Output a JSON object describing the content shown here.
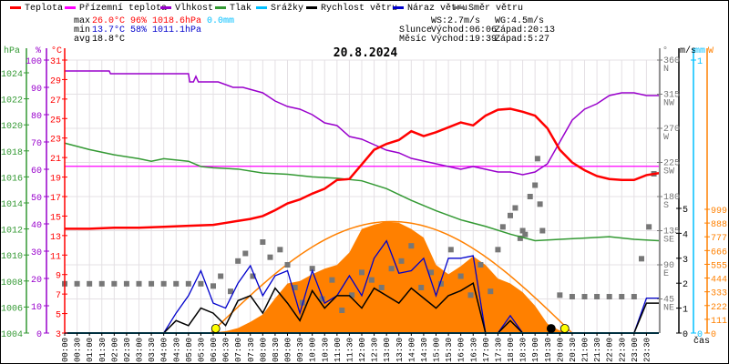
{
  "legend": [
    {
      "label": "Teplota",
      "color": "#ff0000"
    },
    {
      "label": "Přízemní teplota",
      "color": "#ff00ff"
    },
    {
      "label": "Vlhkost",
      "color": "#9900cc"
    },
    {
      "label": "Tlak",
      "color": "#339933"
    },
    {
      "label": "Srážky",
      "color": "#00bfff"
    },
    {
      "label": "Rychlost větru",
      "color": "#000000"
    },
    {
      "label": "Náraz větru",
      "color": "#0000cc"
    },
    {
      "label": "Směr větru",
      "color": "#777777"
    }
  ],
  "stats": {
    "max_label": "max",
    "max_temp": "26.0°C",
    "max_hum": "96%",
    "max_press": "1018.6hPa",
    "rain": "0.0mm",
    "min_label": "min",
    "min_temp": "13.7°C",
    "min_hum": "58%",
    "min_press": "1011.1hPa",
    "avg_label": "avg",
    "avg_temp": "18.8°C",
    "ws": "WS:2.7m/s",
    "wg": "WG:4.5m/s",
    "sun_label": "Slunce",
    "sunrise": "Východ:06:06",
    "sunset": "Západ:20:13",
    "moon_label": "Měsíc",
    "moonrise": "Východ:19:39",
    "moonset": "Západ:5:27"
  },
  "chart_data": {
    "type": "line",
    "title": "20.8.2024",
    "xlabel": "čas",
    "x_ticks": [
      "00:00",
      "00:30",
      "01:00",
      "01:30",
      "02:00",
      "02:30",
      "03:00",
      "03:30",
      "04:00",
      "04:30",
      "05:00",
      "05:30",
      "06:00",
      "06:30",
      "07:00",
      "07:30",
      "08:00",
      "08:30",
      "09:00",
      "09:30",
      "10:00",
      "10:30",
      "11:00",
      "11:30",
      "12:00",
      "12:30",
      "13:00",
      "13:30",
      "14:00",
      "14:30",
      "15:00",
      "15:30",
      "16:00",
      "16:30",
      "17:00",
      "17:30",
      "18:00",
      "18:30",
      "19:00",
      "19:30",
      "20:00",
      "20:30",
      "21:00",
      "21:30",
      "22:00",
      "22:30",
      "23:00",
      "23:30"
    ],
    "axes": {
      "pressure": {
        "unit": "hPa",
        "range": [
          1004,
          1024
        ],
        "ticks": [
          1004,
          1006,
          1008,
          1010,
          1012,
          1014,
          1016,
          1018,
          1020,
          1022,
          1024
        ],
        "color": "#339933"
      },
      "humidity": {
        "unit": "%",
        "range": [
          0,
          100
        ],
        "ticks": [
          0,
          10,
          20,
          30,
          40,
          50,
          60,
          70,
          80,
          90,
          100
        ],
        "color": "#9900cc"
      },
      "temperature": {
        "unit": "°C",
        "range": [
          3,
          31
        ],
        "ticks": [
          3,
          5,
          7,
          9,
          11,
          13,
          15,
          17,
          19,
          21,
          23,
          25,
          27,
          29,
          31
        ],
        "color": "#ff0000"
      },
      "direction": {
        "unit": "°",
        "range": [
          0,
          360
        ],
        "ticks": [
          {
            "v": 45,
            "l": "NE"
          },
          {
            "v": 90,
            "l": "E"
          },
          {
            "v": 135,
            "l": "SE"
          },
          {
            "v": 180,
            "l": "S"
          },
          {
            "v": 225,
            "l": "SW"
          },
          {
            "v": 270,
            "l": "W"
          },
          {
            "v": 315,
            "l": "NW"
          },
          {
            "v": 360,
            "l": "N"
          }
        ],
        "color": "#777777"
      },
      "wind": {
        "unit": "m/s",
        "range": [
          0,
          5
        ],
        "ticks": [
          0,
          1,
          2,
          3,
          4,
          5
        ],
        "color": "#000000"
      },
      "rain": {
        "unit": "mm",
        "range": [
          0,
          1
        ],
        "ticks": [
          0,
          1
        ],
        "color": "#00bfff"
      },
      "radiation": {
        "unit": "W",
        "range": [
          0,
          999
        ],
        "ticks": [
          0,
          111,
          222,
          333,
          444,
          555,
          666,
          777,
          888,
          999
        ],
        "color": "#ff8000"
      }
    },
    "series": {
      "temperature": [
        [
          0,
          13.7
        ],
        [
          1,
          13.7
        ],
        [
          2,
          13.8
        ],
        [
          3,
          13.8
        ],
        [
          4,
          13.9
        ],
        [
          5,
          14.0
        ],
        [
          6,
          14.1
        ],
        [
          6.5,
          14.3
        ],
        [
          7,
          14.5
        ],
        [
          7.5,
          14.7
        ],
        [
          8,
          15.0
        ],
        [
          8.5,
          15.6
        ],
        [
          9,
          16.3
        ],
        [
          9.5,
          16.7
        ],
        [
          10,
          17.3
        ],
        [
          10.5,
          17.8
        ],
        [
          11,
          18.7
        ],
        [
          11.5,
          18.8
        ],
        [
          12,
          20.3
        ],
        [
          12.5,
          21.8
        ],
        [
          13,
          22.4
        ],
        [
          13.5,
          22.8
        ],
        [
          14,
          23.7
        ],
        [
          14.5,
          23.2
        ],
        [
          15,
          23.6
        ],
        [
          15.5,
          24.1
        ],
        [
          16,
          24.6
        ],
        [
          16.5,
          24.3
        ],
        [
          17,
          25.3
        ],
        [
          17.5,
          25.9
        ],
        [
          18,
          26.0
        ],
        [
          18.5,
          25.7
        ],
        [
          19,
          25.3
        ],
        [
          19.5,
          24.0
        ],
        [
          20,
          21.8
        ],
        [
          20.5,
          20.5
        ],
        [
          21,
          19.7
        ],
        [
          21.5,
          19.1
        ],
        [
          22,
          18.8
        ],
        [
          22.5,
          18.7
        ],
        [
          23,
          18.7
        ],
        [
          23.5,
          19.2
        ],
        [
          24,
          19.4
        ]
      ],
      "ground_temperature": [
        [
          0,
          20.1
        ],
        [
          24,
          20.1
        ]
      ],
      "humidity": [
        [
          0,
          96
        ],
        [
          1.8,
          96
        ],
        [
          1.85,
          95
        ],
        [
          5,
          95
        ],
        [
          5.05,
          92
        ],
        [
          5.2,
          92
        ],
        [
          5.3,
          94
        ],
        [
          5.4,
          92
        ],
        [
          6.2,
          92
        ],
        [
          6.8,
          90
        ],
        [
          7.2,
          90
        ],
        [
          7.6,
          89
        ],
        [
          8,
          88
        ],
        [
          8.5,
          85
        ],
        [
          9,
          83
        ],
        [
          9.5,
          82
        ],
        [
          10,
          80
        ],
        [
          10.5,
          77
        ],
        [
          11,
          76
        ],
        [
          11.5,
          72
        ],
        [
          12,
          71
        ],
        [
          12.5,
          69
        ],
        [
          13,
          67
        ],
        [
          13.5,
          66
        ],
        [
          14,
          64
        ],
        [
          14.5,
          63
        ],
        [
          15,
          62
        ],
        [
          15.5,
          61
        ],
        [
          16,
          60
        ],
        [
          16.5,
          61
        ],
        [
          17,
          60
        ],
        [
          17.5,
          59
        ],
        [
          18,
          59
        ],
        [
          18.5,
          58
        ],
        [
          19,
          59
        ],
        [
          19.5,
          62
        ],
        [
          20,
          70
        ],
        [
          20.5,
          78
        ],
        [
          21,
          82
        ],
        [
          21.5,
          84
        ],
        [
          22,
          87
        ],
        [
          22.5,
          88
        ],
        [
          23,
          88
        ],
        [
          23.5,
          87
        ],
        [
          24,
          87
        ]
      ],
      "pressure": [
        [
          0,
          1018.6
        ],
        [
          1,
          1018.1
        ],
        [
          2,
          1017.7
        ],
        [
          3,
          1017.4
        ],
        [
          3.5,
          1017.2
        ],
        [
          4,
          1017.4
        ],
        [
          5,
          1017.2
        ],
        [
          5.5,
          1016.8
        ],
        [
          6,
          1016.7
        ],
        [
          7,
          1016.6
        ],
        [
          8,
          1016.3
        ],
        [
          9,
          1016.2
        ],
        [
          10,
          1016.0
        ],
        [
          11,
          1015.9
        ],
        [
          12,
          1015.7
        ],
        [
          13,
          1015.1
        ],
        [
          14,
          1014.2
        ],
        [
          15,
          1013.4
        ],
        [
          16,
          1012.7
        ],
        [
          17,
          1012.2
        ],
        [
          18,
          1011.6
        ],
        [
          19,
          1011.1
        ],
        [
          20,
          1011.2
        ],
        [
          21,
          1011.3
        ],
        [
          22,
          1011.4
        ],
        [
          23,
          1011.2
        ],
        [
          24,
          1011.1
        ]
      ],
      "rain": [
        [
          0,
          0
        ],
        [
          24,
          0
        ]
      ],
      "wind_speed": [
        [
          0,
          0
        ],
        [
          4,
          0
        ],
        [
          4.5,
          0.5
        ],
        [
          5,
          0.3
        ],
        [
          5.5,
          1.0
        ],
        [
          6,
          0.8
        ],
        [
          6.5,
          0.3
        ],
        [
          7,
          1.3
        ],
        [
          7.5,
          1.5
        ],
        [
          8,
          0.8
        ],
        [
          8.5,
          1.8
        ],
        [
          9,
          1.2
        ],
        [
          9.5,
          0.5
        ],
        [
          10,
          1.7
        ],
        [
          10.5,
          1.0
        ],
        [
          11,
          1.5
        ],
        [
          11.5,
          1.5
        ],
        [
          12,
          1.0
        ],
        [
          12.5,
          1.8
        ],
        [
          13,
          1.5
        ],
        [
          13.5,
          1.2
        ],
        [
          14,
          1.8
        ],
        [
          14.5,
          1.4
        ],
        [
          15,
          1.0
        ],
        [
          15.5,
          1.5
        ],
        [
          16,
          1.7
        ],
        [
          16.5,
          2.0
        ],
        [
          17,
          0
        ],
        [
          17.5,
          0
        ],
        [
          18,
          0.5
        ],
        [
          18.5,
          0
        ],
        [
          23,
          0
        ],
        [
          23.5,
          1.2
        ],
        [
          24,
          1.2
        ]
      ],
      "wind_gust": [
        [
          0,
          0
        ],
        [
          4,
          0
        ],
        [
          4.5,
          0.8
        ],
        [
          5,
          1.5
        ],
        [
          5.5,
          2.5
        ],
        [
          6,
          1.2
        ],
        [
          6.5,
          1.0
        ],
        [
          7,
          2.0
        ],
        [
          7.5,
          2.7
        ],
        [
          8,
          1.5
        ],
        [
          8.5,
          2.3
        ],
        [
          9,
          2.5
        ],
        [
          9.5,
          0.8
        ],
        [
          10,
          2.5
        ],
        [
          10.5,
          1.2
        ],
        [
          11,
          1.5
        ],
        [
          11.5,
          2.3
        ],
        [
          12,
          1.5
        ],
        [
          12.5,
          3.0
        ],
        [
          13,
          3.7
        ],
        [
          13.5,
          2.4
        ],
        [
          14,
          2.5
        ],
        [
          14.5,
          3.0
        ],
        [
          15,
          1.5
        ],
        [
          15.5,
          3.0
        ],
        [
          16,
          3.0
        ],
        [
          16.5,
          3.1
        ],
        [
          17,
          0
        ],
        [
          17.5,
          0
        ],
        [
          18,
          0.7
        ],
        [
          18.5,
          0
        ],
        [
          23,
          0
        ],
        [
          23.5,
          1.4
        ],
        [
          24,
          1.4
        ]
      ],
      "radiation": [
        [
          5.5,
          0
        ],
        [
          6,
          5
        ],
        [
          6.5,
          15
        ],
        [
          7,
          40
        ],
        [
          7.5,
          90
        ],
        [
          8,
          150
        ],
        [
          8.5,
          280
        ],
        [
          9,
          400
        ],
        [
          9.5,
          420
        ],
        [
          10,
          475
        ],
        [
          10.5,
          520
        ],
        [
          11,
          550
        ],
        [
          11.5,
          650
        ],
        [
          12,
          840
        ],
        [
          12.5,
          875
        ],
        [
          13,
          900
        ],
        [
          13.5,
          890
        ],
        [
          14,
          840
        ],
        [
          14.5,
          770
        ],
        [
          15,
          550
        ],
        [
          15.5,
          475
        ],
        [
          16,
          540
        ],
        [
          16.5,
          620
        ],
        [
          17,
          550
        ],
        [
          17.5,
          440
        ],
        [
          18,
          400
        ],
        [
          18.5,
          330
        ],
        [
          19,
          220
        ],
        [
          19.5,
          75
        ],
        [
          20,
          20
        ],
        [
          20.5,
          0
        ]
      ],
      "radiation_theoretical": {
        "rise": 5.9,
        "set": 20.5,
        "peak": 900
      },
      "wind_direction": [
        [
          0,
          65
        ],
        [
          0.5,
          65
        ],
        [
          1,
          65
        ],
        [
          1.5,
          65
        ],
        [
          2,
          65
        ],
        [
          2.5,
          65
        ],
        [
          3,
          65
        ],
        [
          3.5,
          65
        ],
        [
          4,
          65
        ],
        [
          4.5,
          65
        ],
        [
          5,
          65
        ],
        [
          5.5,
          65
        ],
        [
          6,
          62
        ],
        [
          6.3,
          75
        ],
        [
          6.7,
          55
        ],
        [
          7,
          95
        ],
        [
          7.3,
          105
        ],
        [
          7.6,
          75
        ],
        [
          8,
          120
        ],
        [
          8.3,
          100
        ],
        [
          8.7,
          110
        ],
        [
          9,
          90
        ],
        [
          9.3,
          60
        ],
        [
          9.6,
          40
        ],
        [
          10,
          85
        ],
        [
          10.4,
          45
        ],
        [
          10.8,
          70
        ],
        [
          11.2,
          30
        ],
        [
          11.6,
          50
        ],
        [
          12,
          80
        ],
        [
          12.4,
          70
        ],
        [
          12.8,
          60
        ],
        [
          13.2,
          85
        ],
        [
          13.6,
          95
        ],
        [
          14,
          115
        ],
        [
          14.4,
          60
        ],
        [
          14.8,
          80
        ],
        [
          15.2,
          65
        ],
        [
          15.6,
          110
        ],
        [
          16,
          75
        ],
        [
          16.4,
          50
        ],
        [
          16.8,
          90
        ],
        [
          17.2,
          55
        ],
        [
          17.5,
          110
        ],
        [
          17.7,
          140
        ],
        [
          18,
          155
        ],
        [
          18.2,
          165
        ],
        [
          18.4,
          125
        ],
        [
          18.5,
          135
        ],
        [
          18.6,
          130
        ],
        [
          18.8,
          180
        ],
        [
          19,
          195
        ],
        [
          19.1,
          230
        ],
        [
          19.2,
          170
        ],
        [
          19.3,
          135
        ],
        [
          20,
          50
        ],
        [
          20.5,
          48
        ],
        [
          21,
          48
        ],
        [
          21.5,
          48
        ],
        [
          22,
          48
        ],
        [
          22.5,
          48
        ],
        [
          23,
          48
        ],
        [
          23.3,
          98
        ],
        [
          23.6,
          140
        ],
        [
          23.8,
          210
        ]
      ],
      "markers": [
        {
          "name": "sunrise",
          "h": 6.1,
          "color": "#ffff00"
        },
        {
          "name": "moonrise",
          "h": 19.65,
          "color": "#000000"
        },
        {
          "name": "sunset",
          "h": 20.2,
          "color": "#ffff00"
        }
      ]
    }
  }
}
